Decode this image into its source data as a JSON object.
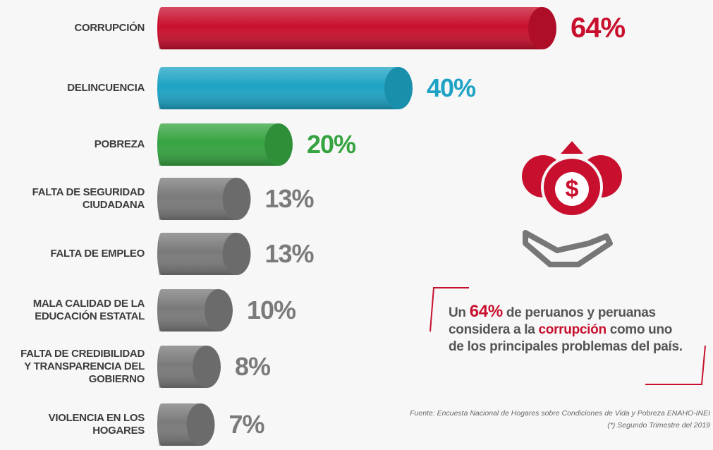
{
  "chart_data": {
    "type": "bar",
    "categories": [
      "CORRUPCIÓN",
      "DELINCUENCIA",
      "POBREZA",
      "FALTA DE SEGURIDAD\nCIUDADANA",
      "FALTA DE EMPLEO",
      "MALA CALIDAD DE LA\nEDUCACIÓN ESTATAL",
      "FALTA DE CREDIBILIDAD\nY TRANSPARENCIA DEL\nGOBIERNO",
      "VIOLENCIA EN LOS\nHOGARES"
    ],
    "values": [
      64,
      40,
      20,
      13,
      13,
      10,
      8,
      7
    ],
    "value_labels": [
      "64%",
      "40%",
      "20%",
      "13%",
      "13%",
      "10%",
      "8%",
      "7%"
    ],
    "colors": [
      "#c8102e",
      "#1ea3c4",
      "#36a341",
      "#7a7a7a",
      "#7a7a7a",
      "#7a7a7a",
      "#7a7a7a",
      "#7a7a7a"
    ]
  },
  "callout": {
    "parts": [
      "Un ",
      "64%",
      " de peruanos y peruanas\nconsidera a la ",
      "corrupción",
      " como uno\nde los principales problemas del país."
    ]
  },
  "source": [
    "Fuente: Encuesta Nacional de Hogares sobre Condiciones de Vida y Pobreza  ENAHO-INEI",
    "(*) Segundo Trimestre del 2019"
  ]
}
